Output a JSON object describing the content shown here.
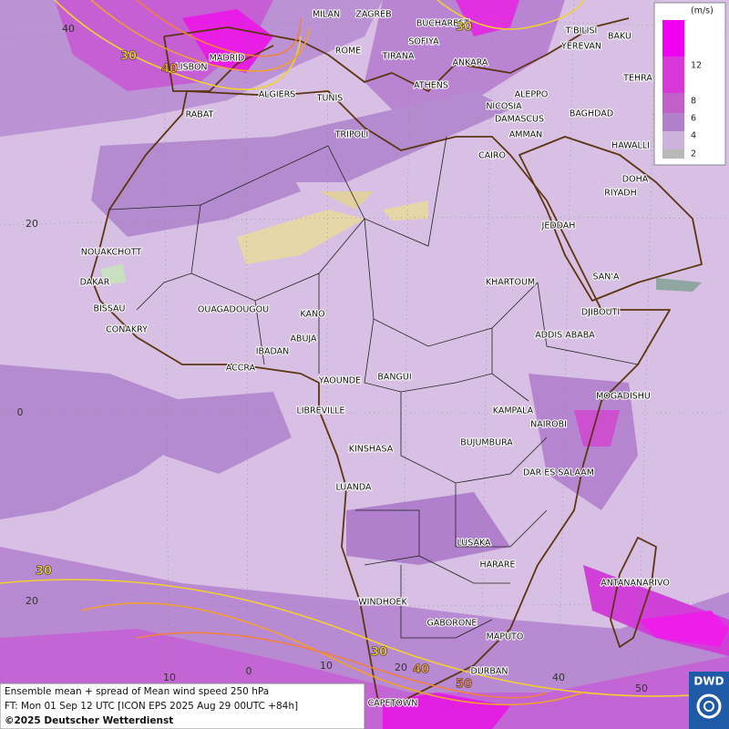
{
  "header": {
    "legend_unit": "(m/s)",
    "legend_ticks": [
      12,
      8,
      6,
      4,
      2
    ]
  },
  "map": {
    "cities": [
      "MILAN",
      "ZAGREB",
      "BUCHAREST",
      "SOFIYA",
      "ROME",
      "TIRANA",
      "ATHENS",
      "ANKARA",
      "T'BILISI",
      "BAKU",
      "YEREVAN",
      "TEHRA",
      "MADRID",
      "LISBON",
      "ALGIERS",
      "TUNIS",
      "ALEPPO",
      "NICOSIA",
      "BAGHDAD",
      "DAMASCUS",
      "AMMAN",
      "HAWALLI",
      "TRIPOLI",
      "RABAT",
      "CAIRO",
      "DOHA",
      "RIYADH",
      "JEDDAH",
      "NOUAKCHOTT",
      "SAN'A",
      "DAKAR",
      "KHARTOUM",
      "BISSAU",
      "DJIBOUTI",
      "OUAGADOUGOU",
      "KANO",
      "CONAKRY",
      "ABUJA",
      "ADDIS ABABA",
      "IBADAN",
      "ACCRA",
      "YAOUNDE",
      "BANGUI",
      "MOGADISHU",
      "LIBREVILLE",
      "KAMPALA",
      "NAIROBI",
      "BUJUMBURA",
      "KINSHASA",
      "DAR ES SALAAM",
      "LUANDA",
      "LUSAKA",
      "HARARE",
      "ANTANANARIVO",
      "WINDHOEK",
      "GABORONE",
      "MAPUTO",
      "DURBAN",
      "CAPETOWN"
    ],
    "contour_labels": [
      30,
      40,
      30,
      30,
      30,
      40,
      50
    ],
    "latitude_labels": [
      40,
      20,
      0,
      20
    ],
    "longitude_labels": [
      10,
      0,
      10,
      20,
      40,
      50
    ]
  },
  "footer": {
    "line1": "Ensemble mean + spread of Mean wind speed 250 hPa",
    "line2": "FT: Mon 01 Sep 12 UTC [ICON EPS 2025 Aug 29 00UTC +84h]",
    "line3": "©2025 Deutscher Wetterdienst",
    "logo": "DWD"
  }
}
